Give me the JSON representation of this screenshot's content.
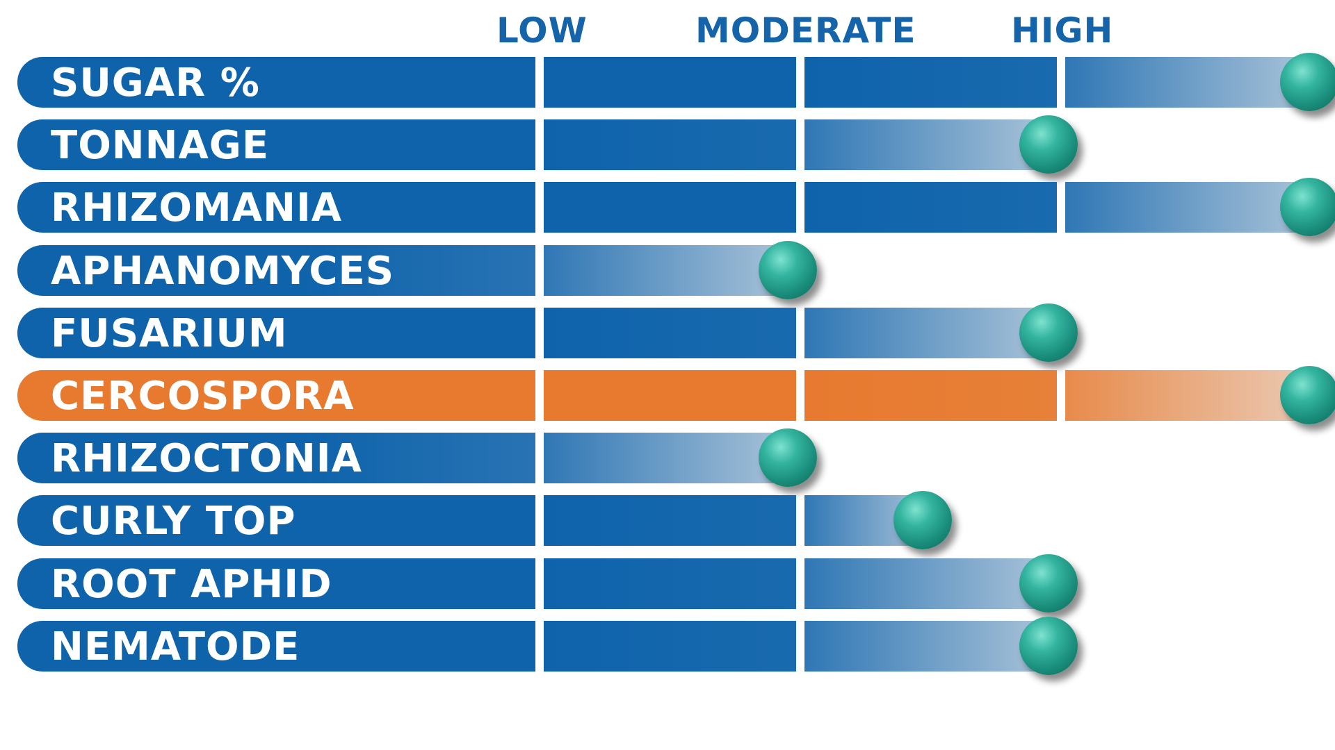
{
  "chart_data": {
    "type": "bar",
    "levels": [
      "LOW",
      "MODERATE",
      "HIGH"
    ],
    "categories": [
      "SUGAR %",
      "TONNAGE",
      "RHIZOMANIA",
      "APHANOMYCES",
      "FUSARIUM",
      "CERCOSPORA",
      "RHIZOCTONIA",
      "CURLY TOP",
      "ROOT APHID",
      "NEMATODE"
    ],
    "values": [
      4,
      3,
      4,
      2,
      3,
      4,
      2,
      2.5,
      3,
      3
    ],
    "scale_max": 4,
    "highlighted": [
      "CERCOSPORA"
    ],
    "title": "",
    "xlabel": "",
    "ylabel": ""
  },
  "colors": {
    "bar": "#0e63ab",
    "highlight": "#e77a2f",
    "level_text": "#1563a8",
    "marker": "#2aa893"
  }
}
